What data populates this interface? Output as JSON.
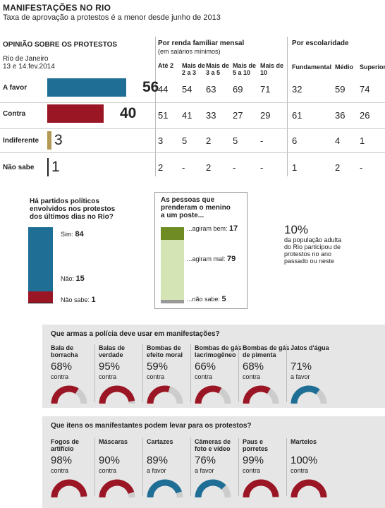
{
  "colors": {
    "blue": "#1f6e96",
    "red": "#9b1625",
    "tan": "#b49a56",
    "olive": "#6e8b24",
    "lightgreen": "#d5e4b5",
    "grey": "#cccccc"
  },
  "header": {
    "title": "MANIFESTAÇÕES NO RIO",
    "subtitle": "Taxa de aprovação a protestos é a menor desde junho de 2013"
  },
  "opinion": {
    "heading": "OPINIÃO SOBRE OS PROTESTOS",
    "place": "Rio de Janeiro",
    "date": "13 e 14.fev.2014",
    "rows": [
      {
        "label": "A favor",
        "value": "56",
        "num": 56
      },
      {
        "label": "Contra",
        "value": "40",
        "num": 40
      },
      {
        "label": "Indiferente",
        "value": "3",
        "num": 3
      },
      {
        "label": "Não sabe",
        "value": "1",
        "num": 1
      }
    ]
  },
  "income": {
    "heading": "Por renda familiar mensal",
    "subheading": "(em salários mínimos)",
    "columns": [
      "Até 2",
      "Mais de 2 a 3",
      "Mais de 3 a 5",
      "Mais de 5 a 10",
      "Mais de 10"
    ],
    "columns_lines": [
      [
        "Até 2"
      ],
      [
        "Mais de",
        "2 a 3"
      ],
      [
        "Mais de",
        "3 a 5"
      ],
      [
        "Mais de",
        "5 a 10"
      ],
      [
        "Mais de",
        "10"
      ]
    ],
    "values": [
      [
        "44",
        "54",
        "63",
        "69",
        "71"
      ],
      [
        "51",
        "41",
        "33",
        "27",
        "29"
      ],
      [
        "3",
        "5",
        "2",
        "5",
        "-"
      ],
      [
        "2",
        "-",
        "2",
        "-",
        "-"
      ]
    ]
  },
  "education": {
    "heading": "Por escolaridade",
    "columns": [
      "Fundamental",
      "Médio",
      "Superior"
    ],
    "values": [
      [
        "32",
        "59",
        "74"
      ],
      [
        "61",
        "36",
        "26"
      ],
      [
        "6",
        "4",
        "1"
      ],
      [
        "1",
        "2",
        "-"
      ]
    ]
  },
  "parties": {
    "question_lines": [
      "Há partidos políticos",
      "envolvidos nos protestos",
      "dos últimos dias no Rio?"
    ],
    "items": [
      {
        "label": "Sim:",
        "value": "84",
        "num": 84
      },
      {
        "label": "Não:",
        "value": "15",
        "num": 15
      },
      {
        "label": "Não sabe:",
        "value": "1",
        "num": 1
      }
    ]
  },
  "agressors": {
    "question_lines": [
      "As pessoas que",
      "prenderam o menino",
      "a um poste..."
    ],
    "items": [
      {
        "label": "...agiram bem:",
        "value": "17",
        "num": 17
      },
      {
        "label": "...agiram mal:",
        "value": "79",
        "num": 79
      },
      {
        "label": "...não sabe:",
        "value": "5",
        "num": 5
      }
    ]
  },
  "participation": {
    "value": "10%",
    "lines": [
      "da população adulta",
      "do Rio participou de",
      "protestos no ano",
      "passado ou neste"
    ]
  },
  "weapons": {
    "question": "Que armas a polícia deve usar em manifestações?",
    "items": [
      {
        "label_lines": [
          "Bala de",
          "borracha"
        ],
        "pct": "68%",
        "num": 68,
        "dir": "contra"
      },
      {
        "label_lines": [
          "Balas de",
          "verdade"
        ],
        "pct": "95%",
        "num": 95,
        "dir": "contra"
      },
      {
        "label_lines": [
          "Bombas de",
          "efeito moral"
        ],
        "pct": "59%",
        "num": 59,
        "dir": "contra"
      },
      {
        "label_lines": [
          "Bombas de gás",
          "lacrimogêneo"
        ],
        "pct": "66%",
        "num": 66,
        "dir": "contra"
      },
      {
        "label_lines": [
          "Bombas de gás",
          "de pimenta"
        ],
        "pct": "68%",
        "num": 68,
        "dir": "contra"
      },
      {
        "label_lines": [
          "Jatos d'água"
        ],
        "pct": "71%",
        "num": 71,
        "dir": "a favor"
      }
    ]
  },
  "items_allowed": {
    "question": "Que itens os manifestantes podem levar para os protestos?",
    "items": [
      {
        "label_lines": [
          "Fogos de",
          "artifício"
        ],
        "pct": "98%",
        "num": 98,
        "dir": "contra"
      },
      {
        "label_lines": [
          "Máscaras"
        ],
        "pct": "90%",
        "num": 90,
        "dir": "contra"
      },
      {
        "label_lines": [
          "Cartazes"
        ],
        "pct": "89%",
        "num": 89,
        "dir": "a favor"
      },
      {
        "label_lines": [
          "Câmeras de",
          "foto e vídeo"
        ],
        "pct": "76%",
        "num": 76,
        "dir": "a favor"
      },
      {
        "label_lines": [
          "Paus e",
          "porretes"
        ],
        "pct": "99%",
        "num": 99,
        "dir": "contra"
      },
      {
        "label_lines": [
          "Martelos"
        ],
        "pct": "100%",
        "num": 100,
        "dir": "contra"
      }
    ]
  },
  "chart_data": [
    {
      "type": "bar",
      "title": "OPINIÃO SOBRE OS PROTESTOS",
      "categories": [
        "A favor",
        "Contra",
        "Indiferente",
        "Não sabe"
      ],
      "values": [
        56,
        40,
        3,
        1
      ]
    },
    {
      "type": "table",
      "title": "Por renda familiar mensal",
      "columns": [
        "Até 2",
        "Mais de 2 a 3",
        "Mais de 3 a 5",
        "Mais de 5 a 10",
        "Mais de 10"
      ],
      "rows": [
        "A favor",
        "Contra",
        "Indiferente",
        "Não sabe"
      ],
      "values": [
        [
          "44",
          "54",
          "63",
          "69",
          "71"
        ],
        [
          "51",
          "41",
          "33",
          "27",
          "29"
        ],
        [
          "3",
          "5",
          "2",
          "5",
          "-"
        ],
        [
          "2",
          "-",
          "2",
          "-",
          "-"
        ]
      ]
    },
    {
      "type": "table",
      "title": "Por escolaridade",
      "columns": [
        "Fundamental",
        "Médio",
        "Superior"
      ],
      "rows": [
        "A favor",
        "Contra",
        "Indiferente",
        "Não sabe"
      ],
      "values": [
        [
          "32",
          "59",
          "74"
        ],
        [
          "61",
          "36",
          "26"
        ],
        [
          "6",
          "4",
          "1"
        ],
        [
          "1",
          "2",
          "-"
        ]
      ]
    },
    {
      "type": "bar",
      "title": "Há partidos políticos envolvidos nos protestos dos últimos dias no Rio?",
      "categories": [
        "Sim",
        "Não",
        "Não sabe"
      ],
      "values": [
        84,
        15,
        1
      ]
    },
    {
      "type": "bar",
      "title": "As pessoas que prenderam o menino a um poste...",
      "categories": [
        "...agiram bem",
        "...agiram mal",
        "...não sabe"
      ],
      "values": [
        17,
        79,
        5
      ]
    },
    {
      "type": "pie",
      "title": "Que armas a polícia deve usar em manifestações?",
      "categories": [
        "Bala de borracha",
        "Balas de verdade",
        "Bombas de efeito moral",
        "Bombas de gás lacrimogêneo",
        "Bombas de gás de pimenta",
        "Jatos d'água"
      ],
      "values": [
        68,
        95,
        59,
        66,
        68,
        71
      ],
      "direction": [
        "contra",
        "contra",
        "contra",
        "contra",
        "contra",
        "a favor"
      ]
    },
    {
      "type": "pie",
      "title": "Que itens os manifestantes podem levar para os protestos?",
      "categories": [
        "Fogos de artifício",
        "Máscaras",
        "Cartazes",
        "Câmeras de foto e vídeo",
        "Paus e porretes",
        "Martelos"
      ],
      "values": [
        98,
        90,
        89,
        76,
        99,
        100
      ],
      "direction": [
        "contra",
        "contra",
        "a favor",
        "a favor",
        "contra",
        "contra"
      ]
    }
  ]
}
